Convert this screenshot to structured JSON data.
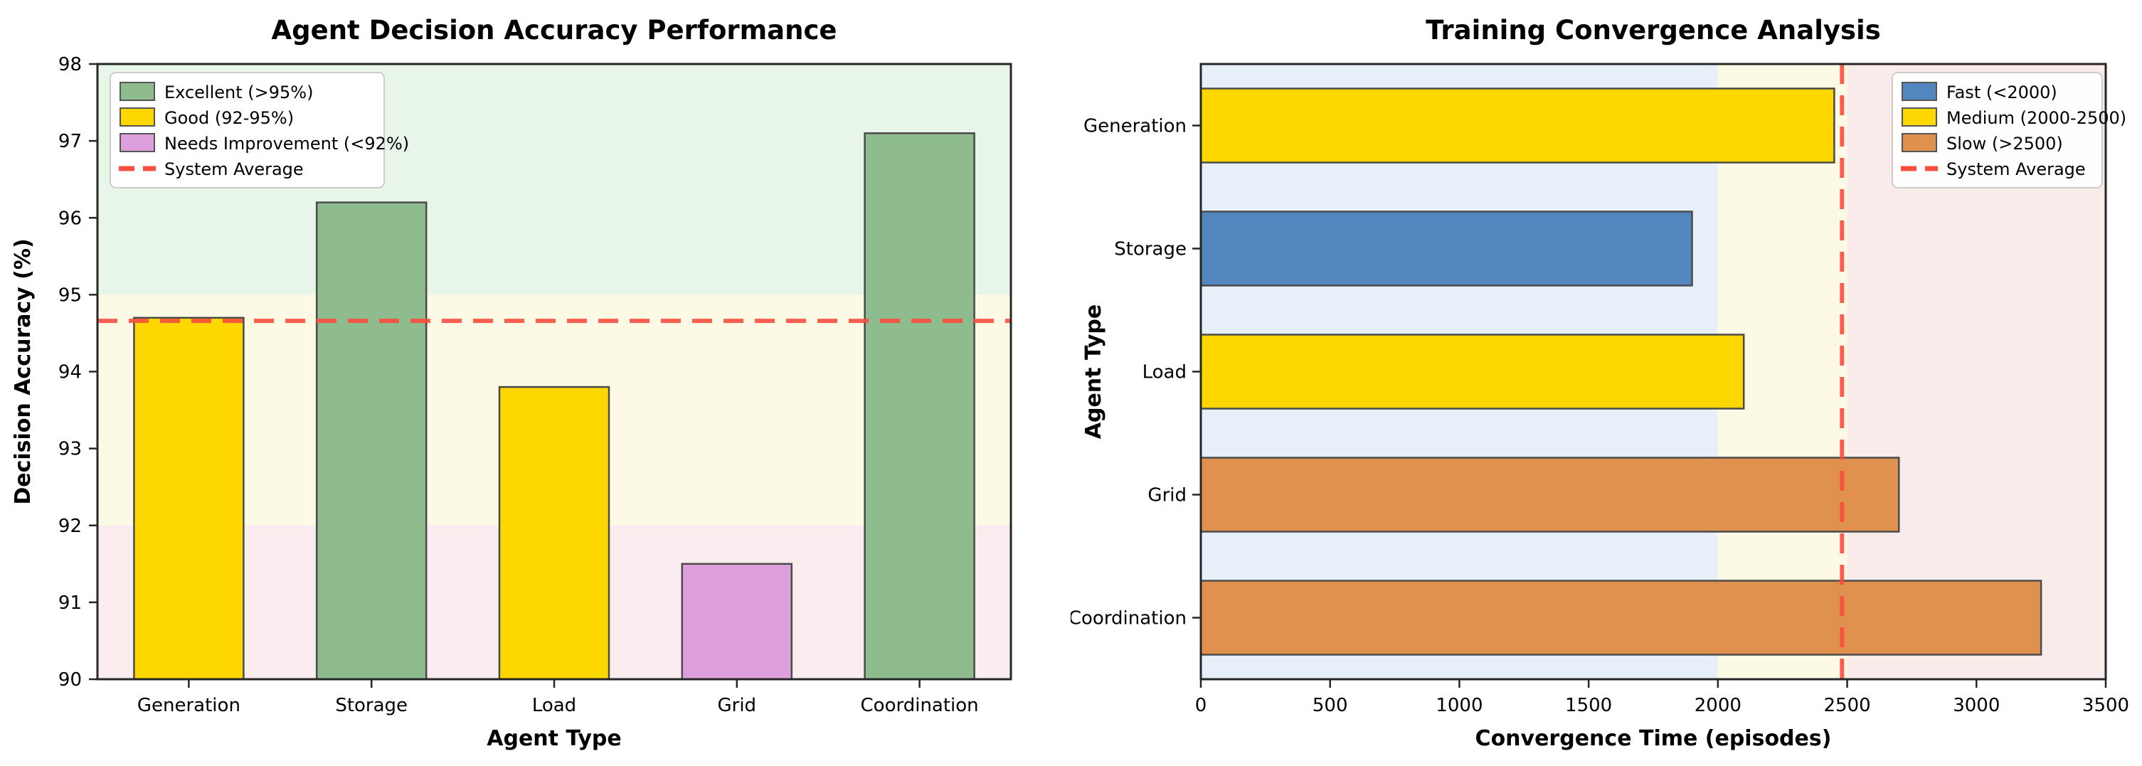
{
  "figure": {
    "background": "#FFFFFF",
    "spine_color": "#262626",
    "bar_edge_color": "#4A4A4A",
    "average_line_color": "#FA4E3E",
    "legend_border_color": "#CCCCCC",
    "legend_background": "#FFFFFF"
  },
  "chart_data": [
    {
      "type": "bar",
      "orientation": "vertical",
      "title": "Agent Decision Accuracy Performance",
      "xlabel": "Agent Type",
      "ylabel": "Decision Accuracy (%)",
      "categories": [
        "Generation",
        "Storage",
        "Load",
        "Grid",
        "Coordination"
      ],
      "values": [
        94.7,
        96.2,
        93.8,
        91.5,
        97.1
      ],
      "bar_colors": [
        "#FFD700",
        "#8FBC8F",
        "#FFD700",
        "#DDA0DD",
        "#8FBC8F"
      ],
      "ylim": [
        90,
        98
      ],
      "yticks": [
        90,
        91,
        92,
        93,
        94,
        95,
        96,
        97,
        98
      ],
      "system_average": 94.66,
      "grid": false,
      "bands": [
        {
          "from": 95,
          "to": 98,
          "color": "#E8F5E9"
        },
        {
          "from": 92,
          "to": 95,
          "color": "#FCF9E4"
        },
        {
          "from": 90,
          "to": 92,
          "color": "#FBEDEF"
        }
      ],
      "legend": {
        "position": "top-left",
        "items": [
          {
            "label": "Excellent (>95%)",
            "swatch": "#8FBC8F",
            "style": "patch"
          },
          {
            "label": "Good (92-95%)",
            "swatch": "#FFD700",
            "style": "patch"
          },
          {
            "label": "Needs Improvement (<92%)",
            "swatch": "#DDA0DD",
            "style": "patch"
          },
          {
            "label": "System Average",
            "swatch": "#FA4E3E",
            "style": "dash"
          }
        ]
      }
    },
    {
      "type": "bar",
      "orientation": "horizontal",
      "title": "Training Convergence Analysis",
      "xlabel": "Convergence Time (episodes)",
      "ylabel": "Agent Type",
      "categories": [
        "Generation",
        "Storage",
        "Load",
        "Grid",
        "Coordination"
      ],
      "values": [
        2450,
        1900,
        2100,
        2700,
        3250
      ],
      "bar_colors": [
        "#FFD700",
        "#5187BE",
        "#FFD700",
        "#E0914E",
        "#E0914E"
      ],
      "xlim": [
        0,
        3500
      ],
      "xticks": [
        0,
        500,
        1000,
        1500,
        2000,
        2500,
        3000,
        3500
      ],
      "system_average": 2480,
      "grid": false,
      "bands": [
        {
          "from": 0,
          "to": 2000,
          "color": "#E7F0F8"
        },
        {
          "from": 2000,
          "to": 2500,
          "color": "#FCF9E4"
        },
        {
          "from": 2500,
          "to": 3500,
          "color": "#FAEBEB"
        }
      ],
      "legend": {
        "position": "top-right",
        "items": [
          {
            "label": "Fast (<2000)",
            "swatch": "#5187BE",
            "style": "patch"
          },
          {
            "label": "Medium (2000-2500)",
            "swatch": "#FFD700",
            "style": "patch"
          },
          {
            "label": "Slow (>2500)",
            "swatch": "#E0914E",
            "style": "patch"
          },
          {
            "label": "System Average",
            "swatch": "#FA4E3E",
            "style": "dash"
          }
        ]
      }
    }
  ]
}
